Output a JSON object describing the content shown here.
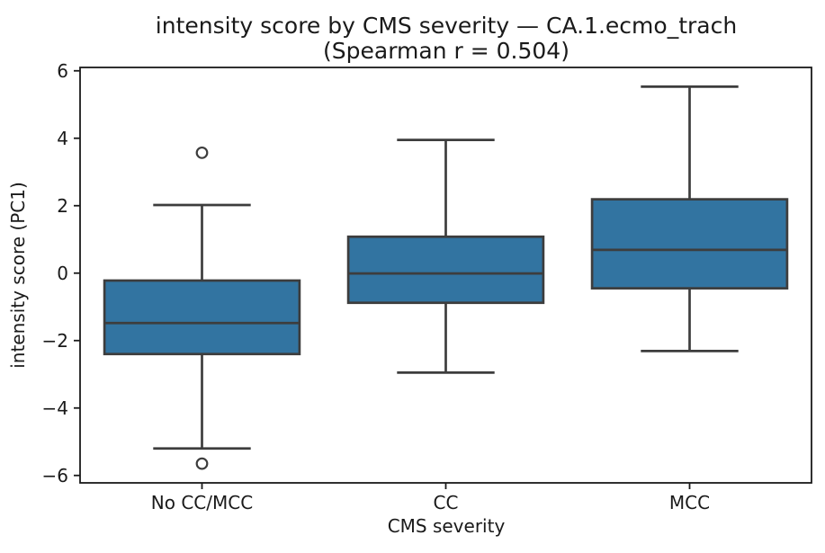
{
  "chart_data": {
    "type": "box",
    "title": "intensity score by CMS severity — CA.1.ecmo_trach",
    "subtitle": "(Spearman r = 0.504)",
    "xlabel": "CMS severity",
    "ylabel": "intensity score (PC1)",
    "categories": [
      "No CC/MCC",
      "CC",
      "MCC"
    ],
    "ylim": [
      -6.22,
      6.1
    ],
    "yticks": [
      -6,
      -4,
      -2,
      0,
      2,
      4,
      6
    ],
    "grid": false,
    "legend": null,
    "series": [
      {
        "name": "No CC/MCC",
        "whisker_low": -5.2,
        "q1": -2.4,
        "median": -1.48,
        "q3": -0.22,
        "whisker_high": 2.02,
        "outliers": [
          3.57,
          -5.65
        ]
      },
      {
        "name": "CC",
        "whisker_low": -2.95,
        "q1": -0.88,
        "median": -0.01,
        "q3": 1.08,
        "whisker_high": 3.95,
        "outliers": []
      },
      {
        "name": "MCC",
        "whisker_low": -2.31,
        "q1": -0.45,
        "median": 0.69,
        "q3": 2.19,
        "whisker_high": 5.53,
        "outliers": []
      }
    ],
    "colors": {
      "box_fill": "#3274a1",
      "box_edge": "#3d3d3d",
      "flier_edge": "#3d3d3d",
      "axis": "#1a1a1a",
      "text": "#1a1a1a",
      "background": "#ffffff"
    }
  }
}
